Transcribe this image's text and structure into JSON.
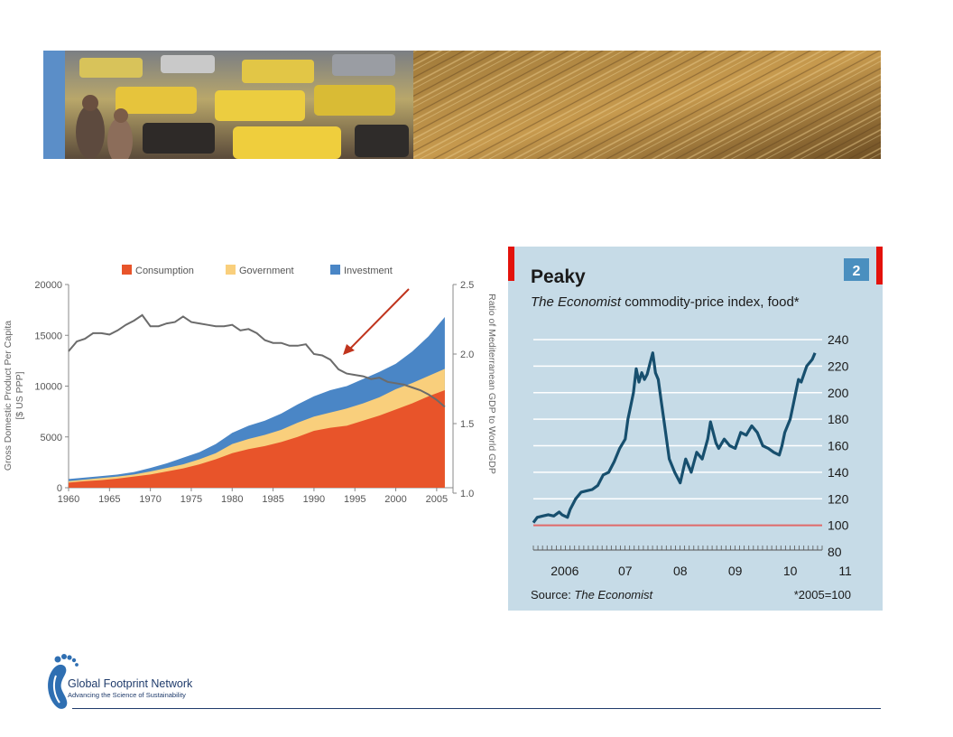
{
  "slide": {
    "banner_left_image": "traffic-photo",
    "banner_right_image": "wheat-field-photo",
    "accent_color": "#5b8ec8"
  },
  "logo": {
    "icon": "footprint-icon",
    "name": "Global Footprint Network",
    "tagline": "Advancing the Science of Sustainability"
  },
  "chart_data": [
    {
      "type": "area",
      "title": "",
      "ylabel": "Gross Domestic Product Per Capita [$ US PPP]",
      "y2label": "Ratio of Mediterranean GDP to World GDP",
      "xlim": [
        1960,
        2007
      ],
      "ylim": [
        0,
        20000
      ],
      "y2lim": [
        1.0,
        2.5
      ],
      "xticks": [
        "1960",
        "1965",
        "1970",
        "1975",
        "1980",
        "1985",
        "1990",
        "1995",
        "2000",
        "2005"
      ],
      "yticks": [
        "0",
        "5000",
        "10000",
        "15000",
        "20000"
      ],
      "y2ticks": [
        "1.0",
        "1.5",
        "2.0",
        "2.5"
      ],
      "legend": [
        {
          "name": "Consumption",
          "color": "#e8542a"
        },
        {
          "name": "Government",
          "color": "#f9cf7c"
        },
        {
          "name": "Investment",
          "color": "#4a86c6"
        }
      ],
      "x": [
        1960,
        1962,
        1964,
        1966,
        1968,
        1970,
        1972,
        1974,
        1976,
        1978,
        1980,
        1982,
        1984,
        1986,
        1988,
        1990,
        1992,
        1994,
        1996,
        1998,
        2000,
        2002,
        2004,
        2006
      ],
      "series": [
        {
          "name": "Consumption",
          "stack_top": [
            500,
            650,
            750,
            900,
            1100,
            1300,
            1600,
            1900,
            2300,
            2800,
            3400,
            3800,
            4100,
            4500,
            5000,
            5600,
            5900,
            6100,
            6600,
            7100,
            7700,
            8300,
            9000,
            9600
          ]
        },
        {
          "name": "Government",
          "stack_top": [
            650,
            800,
            950,
            1100,
            1300,
            1600,
            1950,
            2300,
            2800,
            3400,
            4300,
            4800,
            5200,
            5700,
            6400,
            7000,
            7400,
            7800,
            8300,
            8900,
            9700,
            10300,
            11000,
            11700
          ]
        },
        {
          "name": "Investment",
          "stack_top": [
            850,
            1000,
            1150,
            1300,
            1550,
            1950,
            2400,
            2950,
            3500,
            4300,
            5400,
            6100,
            6600,
            7300,
            8200,
            9000,
            9600,
            10000,
            10700,
            11400,
            12200,
            13400,
            14900,
            16800
          ]
        }
      ],
      "ratio_line": {
        "x": [
          1960,
          1961,
          1962,
          1963,
          1964,
          1965,
          1966,
          1967,
          1968,
          1969,
          1970,
          1971,
          1972,
          1973,
          1974,
          1975,
          1976,
          1977,
          1978,
          1979,
          1980,
          1981,
          1982,
          1983,
          1984,
          1985,
          1986,
          1987,
          1988,
          1989,
          1990,
          1991,
          1992,
          1993,
          1994,
          1995,
          1996,
          1997,
          1998,
          1999,
          2000,
          2001,
          2002,
          2003,
          2004,
          2005,
          2006
        ],
        "y": [
          2.02,
          2.09,
          2.11,
          2.15,
          2.15,
          2.14,
          2.17,
          2.21,
          2.24,
          2.28,
          2.2,
          2.2,
          2.22,
          2.23,
          2.27,
          2.23,
          2.22,
          2.21,
          2.2,
          2.2,
          2.21,
          2.17,
          2.18,
          2.15,
          2.1,
          2.08,
          2.08,
          2.06,
          2.06,
          2.07,
          2.0,
          1.99,
          1.96,
          1.89,
          1.86,
          1.85,
          1.84,
          1.82,
          1.83,
          1.8,
          1.79,
          1.78,
          1.76,
          1.74,
          1.71,
          1.67,
          1.62
        ]
      }
    },
    {
      "type": "line",
      "title": "Peaky",
      "subtitle_italic": "The Economist",
      "subtitle_rest": " commodity-price index, food*",
      "badge": "2",
      "source_label": "Source: ",
      "source_italic": "The Economist",
      "footnote": "*2005=100",
      "ylim": [
        80,
        240
      ],
      "yticks": [
        "240",
        "220",
        "200",
        "180",
        "160",
        "140",
        "120",
        "100",
        "80"
      ],
      "xticks": [
        "2006",
        "07",
        "08",
        "09",
        "10",
        "11"
      ],
      "baseline": 100,
      "x": [
        2005.83,
        2005.9,
        2006.0,
        2006.1,
        2006.2,
        2006.3,
        2006.35,
        2006.45,
        2006.5,
        2006.6,
        2006.7,
        2006.8,
        2006.9,
        2007.0,
        2007.1,
        2007.2,
        2007.3,
        2007.4,
        2007.5,
        2007.55,
        2007.6,
        2007.65,
        2007.7,
        2007.75,
        2007.8,
        2007.85,
        2007.9,
        2007.95,
        2008.0,
        2008.05,
        2008.1,
        2008.15,
        2008.2,
        2008.3,
        2008.4,
        2008.5,
        2008.6,
        2008.7,
        2008.8,
        2008.9,
        2009.0,
        2009.05,
        2009.1,
        2009.15,
        2009.2,
        2009.3,
        2009.4,
        2009.5,
        2009.6,
        2009.7,
        2009.8,
        2009.9,
        2010.0,
        2010.1,
        2010.2,
        2010.3,
        2010.35,
        2010.4,
        2010.5,
        2010.55,
        2010.6,
        2010.65,
        2010.7,
        2010.8,
        2010.9,
        2010.95
      ],
      "values": [
        102,
        106,
        107,
        108,
        107,
        110,
        108,
        106,
        112,
        120,
        125,
        126,
        127,
        130,
        138,
        140,
        148,
        158,
        165,
        180,
        190,
        200,
        218,
        208,
        215,
        210,
        214,
        222,
        230,
        215,
        210,
        195,
        180,
        150,
        140,
        132,
        150,
        140,
        155,
        150,
        165,
        178,
        170,
        162,
        158,
        165,
        160,
        158,
        170,
        168,
        175,
        170,
        160,
        158,
        155,
        153,
        160,
        170,
        180,
        190,
        200,
        210,
        208,
        220,
        225,
        230
      ]
    }
  ]
}
